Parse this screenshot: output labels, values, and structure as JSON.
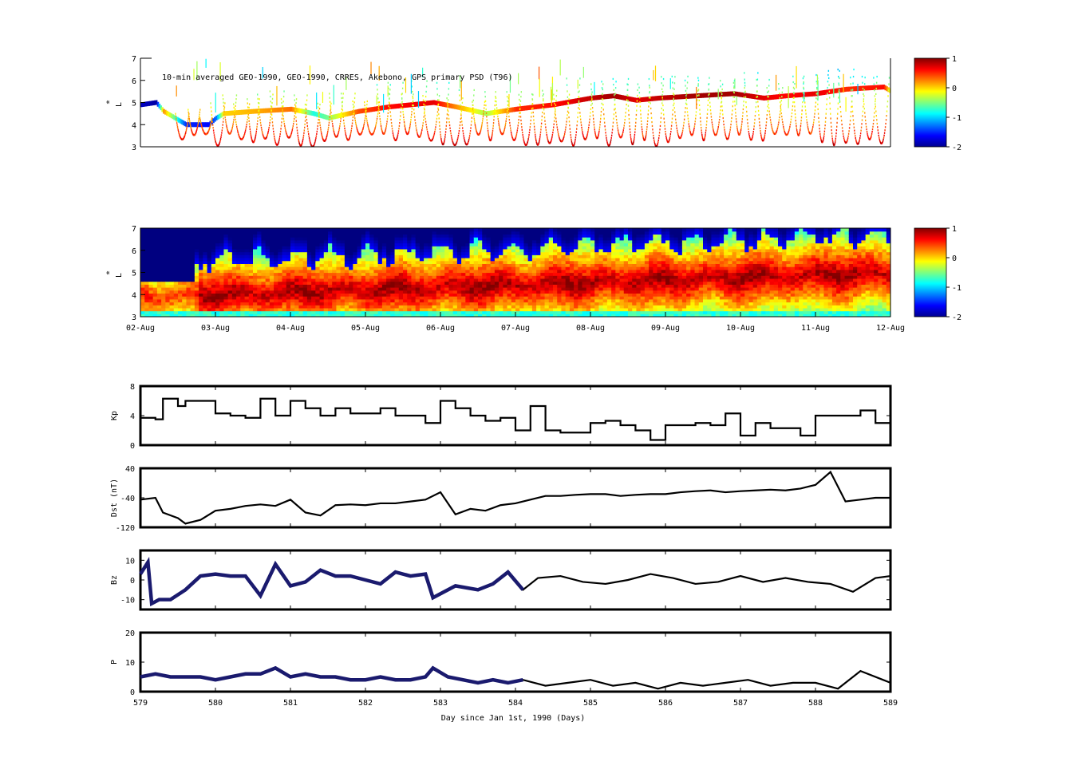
{
  "figure": {
    "panel1_title": "10-min averaged GEO-1990, GEO-1990, CRRES, Akebono, GPS  primary PSD (T96)",
    "date_ticks": [
      "02-Aug",
      "03-Aug",
      "04-Aug",
      "05-Aug",
      "06-Aug",
      "07-Aug",
      "08-Aug",
      "09-Aug",
      "10-Aug",
      "11-Aug",
      "12-Aug"
    ],
    "bottom_xlabel": "Day since Jan 1st, 1990 (Days)",
    "colormap": "jet",
    "colors": {
      "solar_wind_measured": "#1a1a6e",
      "line": "#000000"
    }
  },
  "chart_data": [
    {
      "type": "scatter",
      "name": "psd_observed",
      "ylabel": "L*",
      "ylim": [
        3,
        7
      ],
      "yticks": [
        3,
        4,
        5,
        6,
        7
      ],
      "xlim": [
        579,
        589
      ],
      "colorbar": {
        "range": [
          -2,
          1
        ],
        "ticks": [
          1,
          0,
          -1,
          -2
        ]
      },
      "plateau": {
        "x": [
          579.0,
          579.2,
          579.3,
          579.6,
          579.9,
          580.0,
          580.1,
          580.5,
          581.0,
          581.3,
          581.5,
          581.9,
          582.3,
          582.9,
          583.2,
          583.6,
          584.0,
          584.5,
          585.0,
          585.3,
          585.6,
          585.9,
          586.4,
          586.9,
          587.3,
          587.6,
          588.0,
          588.4,
          588.9,
          589.0
        ],
        "L": [
          4.9,
          5.0,
          4.6,
          4.0,
          4.0,
          4.3,
          4.5,
          4.6,
          4.7,
          4.5,
          4.3,
          4.6,
          4.8,
          5.0,
          4.8,
          4.5,
          4.7,
          4.9,
          5.2,
          5.3,
          5.1,
          5.2,
          5.3,
          5.4,
          5.2,
          5.3,
          5.4,
          5.6,
          5.7,
          5.5
        ],
        "psd": [
          -1.8,
          -1.9,
          0.2,
          -1.5,
          -1.6,
          -1.3,
          0.0,
          0.1,
          0.3,
          -0.8,
          -0.5,
          0.4,
          0.6,
          0.7,
          0.2,
          -0.4,
          0.5,
          0.6,
          0.8,
          0.9,
          0.7,
          0.8,
          0.9,
          0.9,
          0.7,
          0.6,
          0.7,
          0.5,
          0.6,
          -0.3
        ]
      }
    },
    {
      "type": "heatmap",
      "name": "psd_reanalysis",
      "ylabel": "L*",
      "ylim": [
        3,
        7
      ],
      "yticks": [
        3,
        4,
        5,
        6,
        7
      ],
      "xlim": [
        579,
        589
      ],
      "colorbar": {
        "range": [
          -2,
          1
        ],
        "ticks": [
          1,
          0,
          -1,
          -2
        ]
      }
    },
    {
      "type": "line",
      "name": "Kp",
      "ylabel": "Kp",
      "ylim": [
        0,
        8
      ],
      "yticks": [
        0,
        4,
        8
      ],
      "x": [
        579.0,
        579.2,
        579.3,
        579.5,
        579.6,
        579.8,
        580.0,
        580.2,
        580.4,
        580.6,
        580.8,
        581.0,
        581.2,
        581.4,
        581.6,
        581.8,
        582.0,
        582.2,
        582.4,
        582.6,
        582.8,
        583.0,
        583.2,
        583.4,
        583.6,
        583.8,
        584.0,
        584.2,
        584.4,
        584.6,
        584.8,
        585.0,
        585.2,
        585.4,
        585.6,
        585.8,
        586.0,
        586.2,
        586.4,
        586.6,
        586.8,
        587.0,
        587.2,
        587.4,
        587.6,
        587.8,
        588.0,
        588.2,
        588.4,
        588.6,
        588.8,
        589.0
      ],
      "y": [
        3.7,
        3.5,
        6.3,
        5.3,
        6.0,
        6.0,
        4.3,
        4.0,
        3.7,
        6.3,
        4.0,
        6.0,
        5.0,
        4.0,
        5.0,
        4.3,
        4.3,
        5.0,
        4.0,
        4.0,
        3.0,
        6.0,
        5.0,
        4.0,
        3.3,
        3.7,
        2.0,
        5.3,
        2.0,
        1.7,
        1.7,
        3.0,
        3.3,
        2.7,
        2.0,
        0.7,
        2.7,
        2.7,
        3.0,
        2.7,
        4.3,
        1.3,
        3.0,
        2.3,
        2.3,
        1.3,
        4.0,
        4.0,
        4.0,
        4.7,
        3.0,
        2.0
      ]
    },
    {
      "type": "line",
      "name": "Dst",
      "ylabel": "Dst (nT)",
      "ylim": [
        -120,
        40
      ],
      "yticks": [
        -120,
        -40,
        40
      ],
      "x": [
        579.0,
        579.2,
        579.3,
        579.5,
        579.6,
        579.8,
        580.0,
        580.2,
        580.4,
        580.6,
        580.8,
        581.0,
        581.2,
        581.4,
        581.6,
        581.8,
        582.0,
        582.2,
        582.4,
        582.6,
        582.8,
        583.0,
        583.2,
        583.4,
        583.6,
        583.8,
        584.0,
        584.2,
        584.4,
        584.6,
        584.8,
        585.0,
        585.2,
        585.4,
        585.6,
        585.8,
        586.0,
        586.2,
        586.4,
        586.6,
        586.8,
        587.0,
        587.2,
        587.4,
        587.6,
        587.8,
        588.0,
        588.2,
        588.4,
        588.6,
        588.8,
        589.0
      ],
      "y": [
        -45,
        -40,
        -80,
        -95,
        -110,
        -100,
        -75,
        -70,
        -62,
        -58,
        -62,
        -45,
        -80,
        -88,
        -60,
        -58,
        -60,
        -55,
        -55,
        -50,
        -45,
        -25,
        -85,
        -70,
        -75,
        -60,
        -55,
        -45,
        -35,
        -35,
        -32,
        -30,
        -30,
        -35,
        -32,
        -30,
        -30,
        -25,
        -22,
        -20,
        -25,
        -22,
        -20,
        -18,
        -20,
        -15,
        -5,
        30,
        -50,
        -45,
        -40,
        -40
      ]
    },
    {
      "type": "line",
      "name": "Bz",
      "ylabel": "Bz",
      "ylim": [
        -15,
        15
      ],
      "yticks": [
        -10,
        0,
        10
      ],
      "measured_until": 584.1,
      "x": [
        579.0,
        579.1,
        579.15,
        579.25,
        579.4,
        579.6,
        579.8,
        580.0,
        580.2,
        580.4,
        580.6,
        580.8,
        581.0,
        581.2,
        581.4,
        581.6,
        581.8,
        582.0,
        582.2,
        582.4,
        582.6,
        582.8,
        582.9,
        583.2,
        583.5,
        583.7,
        583.9,
        584.1,
        584.3,
        584.6,
        584.9,
        585.2,
        585.5,
        585.8,
        586.1,
        586.4,
        586.7,
        587.0,
        587.3,
        587.6,
        587.9,
        588.2,
        588.5,
        588.8,
        589.0
      ],
      "y": [
        3,
        9,
        -12,
        -10,
        -10,
        -5,
        2,
        3,
        2,
        2,
        -8,
        8,
        -3,
        -1,
        5,
        2,
        2,
        0,
        -2,
        4,
        2,
        3,
        -9,
        -3,
        -5,
        -2,
        4,
        -5,
        1,
        2,
        -1,
        -2,
        0,
        3,
        1,
        -2,
        -1,
        2,
        -1,
        1,
        -1,
        -2,
        -6,
        1,
        2
      ]
    },
    {
      "type": "line",
      "name": "P",
      "ylabel": "P",
      "ylim": [
        0,
        20
      ],
      "yticks": [
        0,
        10,
        20
      ],
      "measured_until": 584.1,
      "x": [
        579.0,
        579.2,
        579.4,
        579.6,
        579.8,
        580.0,
        580.2,
        580.4,
        580.6,
        580.8,
        581.0,
        581.2,
        581.4,
        581.6,
        581.8,
        582.0,
        582.2,
        582.4,
        582.6,
        582.8,
        582.9,
        583.1,
        583.3,
        583.5,
        583.7,
        583.9,
        584.1,
        584.4,
        584.7,
        585.0,
        585.3,
        585.6,
        585.9,
        586.2,
        586.5,
        586.8,
        587.1,
        587.4,
        587.7,
        588.0,
        588.3,
        588.6,
        588.9,
        589.0
      ],
      "y": [
        5,
        6,
        5,
        5,
        5,
        4,
        5,
        6,
        6,
        8,
        5,
        6,
        5,
        5,
        4,
        4,
        5,
        4,
        4,
        5,
        8,
        5,
        4,
        3,
        4,
        3,
        4,
        2,
        3,
        4,
        2,
        3,
        1,
        3,
        2,
        3,
        4,
        2,
        3,
        3,
        1,
        7,
        4,
        3
      ]
    }
  ]
}
